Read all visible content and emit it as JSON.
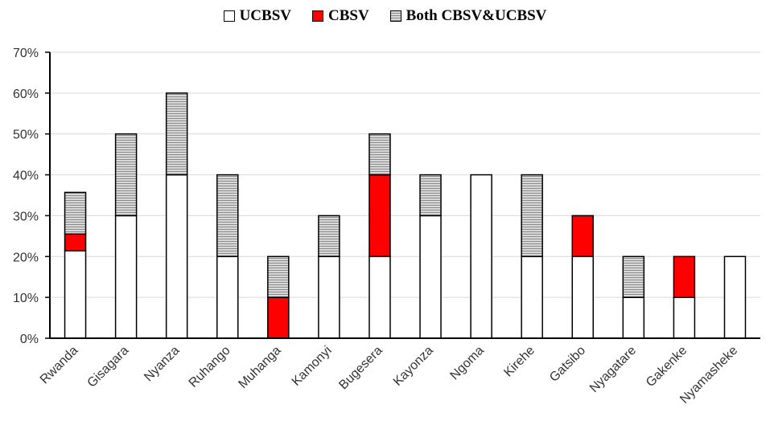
{
  "chart_data": {
    "type": "bar",
    "stacked": true,
    "categories": [
      "Rwanda",
      "Gisagara",
      "Nyanza",
      "Ruhango",
      "Muhanga",
      "Kamonyi",
      "Bugesera",
      "Kayonza",
      "Ngoma",
      "Kirehe",
      "Gatsibo",
      "Nyagatare",
      "Gakenke",
      "Nyamasheke"
    ],
    "series": [
      {
        "name": "UCBSV",
        "color": "#ffffff",
        "pattern": "solid",
        "values": [
          21.4,
          30,
          40,
          20,
          0,
          20,
          20,
          30,
          40,
          20,
          20,
          10,
          10,
          20
        ]
      },
      {
        "name": "CBSV",
        "color": "#ff0000",
        "pattern": "solid",
        "values": [
          4.1,
          0,
          0,
          0,
          10,
          0,
          20,
          0,
          0,
          0,
          10,
          0,
          10,
          0
        ]
      },
      {
        "name": "Both CBSV&UCBSV",
        "color": "#d9d9d9",
        "pattern": "horizontal-hatch",
        "values": [
          10.2,
          20,
          20,
          20,
          10,
          10,
          10,
          10,
          0,
          20,
          0,
          10,
          0,
          0
        ]
      }
    ],
    "ylim": [
      0,
      70
    ],
    "yticks": [
      "0%",
      "10%",
      "20%",
      "30%",
      "40%",
      "50%",
      "60%",
      "70%"
    ],
    "ytick_values": [
      0,
      10,
      20,
      30,
      40,
      50,
      60,
      70
    ],
    "grid": true,
    "legend_position": "top-center",
    "xlabel": "",
    "ylabel": ""
  }
}
